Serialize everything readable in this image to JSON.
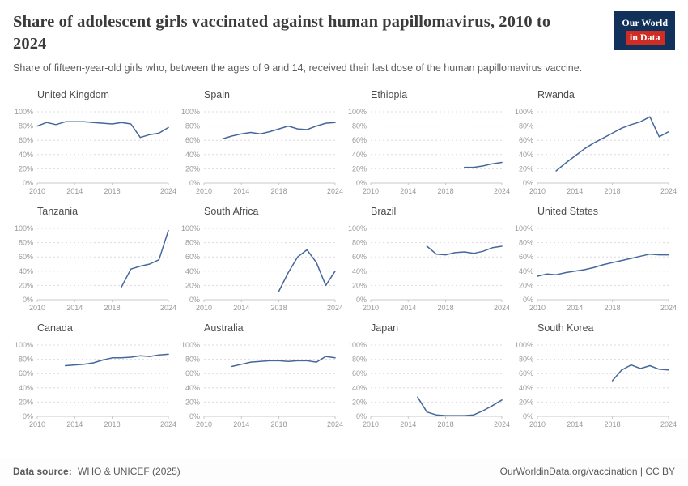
{
  "colors": {
    "line": "#45679b",
    "grid": "#dcdcdc",
    "axis": "#c8c8c8",
    "tick": "#999999",
    "title_text": "#3b3b3b",
    "subtitle_text": "#5e5e5e",
    "panel_title_text": "#4d4d4d",
    "footer_text": "#5a5a5a",
    "logo_bg": "#12315a",
    "logo_accent": "#cf2d24"
  },
  "header": {
    "title": "Share of adolescent girls vaccinated against human papillomavirus, 2010 to 2024",
    "subtitle": "Share of fifteen-year-old girls who, between the ages of 9 and 14, received their last dose of the human papillomavirus vaccine.",
    "logo": {
      "line1": "Our World",
      "line2": "in Data"
    }
  },
  "chart_data": {
    "type": "line",
    "title": "Share of adolescent girls vaccinated against human papillomavirus, 2010 to 2024",
    "x_domain": [
      2010,
      2024
    ],
    "ylim": [
      0,
      100
    ],
    "x_ticks": [
      2010,
      2014,
      2018,
      2024
    ],
    "y_ticks": [
      0,
      20,
      40,
      60,
      80,
      100
    ],
    "y_suffix": "%",
    "grid": "dashed-horizontal",
    "legend": "none",
    "panels": [
      {
        "title": "United Kingdom",
        "start_year": 2010,
        "values": [
          80,
          85,
          82,
          86,
          86,
          86,
          85,
          84,
          83,
          85,
          83,
          64,
          68,
          70,
          78
        ]
      },
      {
        "title": "Spain",
        "start_year": 2012,
        "values": [
          62,
          66,
          69,
          71,
          69,
          72,
          76,
          80,
          76,
          75,
          80,
          84,
          85
        ]
      },
      {
        "title": "Ethiopia",
        "start_year": 2020,
        "values": [
          22,
          22,
          24,
          27,
          29
        ]
      },
      {
        "title": "Rwanda",
        "start_year": 2012,
        "values": [
          17,
          28,
          38,
          48,
          56,
          63,
          70,
          77,
          82,
          86,
          93,
          65,
          72
        ]
      },
      {
        "title": "Tanzania",
        "start_year": 2019,
        "values": [
          18,
          43,
          47,
          50,
          56,
          97
        ]
      },
      {
        "title": "South Africa",
        "start_year": 2018,
        "values": [
          12,
          38,
          60,
          70,
          52,
          20,
          40
        ]
      },
      {
        "title": "Brazil",
        "start_year": 2016,
        "values": [
          75,
          64,
          63,
          66,
          67,
          65,
          68,
          73,
          75
        ]
      },
      {
        "title": "United States",
        "start_year": 2010,
        "values": [
          33,
          36,
          35,
          38,
          40,
          42,
          45,
          49,
          52,
          55,
          58,
          61,
          64,
          63,
          63
        ]
      },
      {
        "title": "Canada",
        "start_year": 2013,
        "values": [
          71,
          72,
          73,
          75,
          79,
          82,
          82,
          83,
          85,
          84,
          86,
          87
        ]
      },
      {
        "title": "Australia",
        "start_year": 2013,
        "values": [
          70,
          73,
          76,
          77,
          78,
          78,
          77,
          78,
          78,
          76,
          84,
          82
        ]
      },
      {
        "title": "Japan",
        "start_year": 2015,
        "values": [
          27,
          6,
          2,
          1,
          1,
          1,
          2,
          8,
          15,
          23
        ]
      },
      {
        "title": "South Korea",
        "start_year": 2018,
        "values": [
          50,
          65,
          72,
          67,
          71,
          66,
          65
        ]
      }
    ]
  },
  "footer": {
    "source_label": "Data source:",
    "source_value": "WHO & UNICEF (2025)",
    "right": "OurWorldinData.org/vaccination | CC BY"
  }
}
